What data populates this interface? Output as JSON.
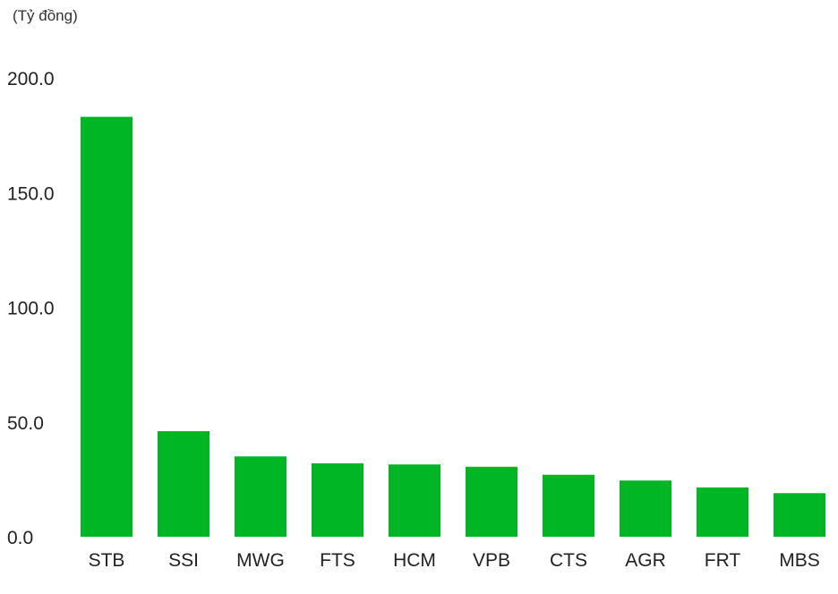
{
  "chart_data": {
    "type": "bar",
    "unit_label": "(Tỷ đồng)",
    "categories": [
      "STB",
      "SSI",
      "MWG",
      "FTS",
      "HCM",
      "VPB",
      "CTS",
      "AGR",
      "FRT",
      "MBS"
    ],
    "values": [
      183.0,
      46.0,
      35.0,
      32.0,
      31.5,
      30.5,
      27.0,
      24.5,
      21.5,
      19.0
    ],
    "ylim": [
      0,
      200
    ],
    "yticks": [
      "0.0",
      "50.0",
      "100.0",
      "150.0",
      "200.0"
    ],
    "ytick_values": [
      0,
      50,
      100,
      150,
      200
    ],
    "grid": false,
    "legend": "none",
    "bar_color": "#00b624"
  }
}
